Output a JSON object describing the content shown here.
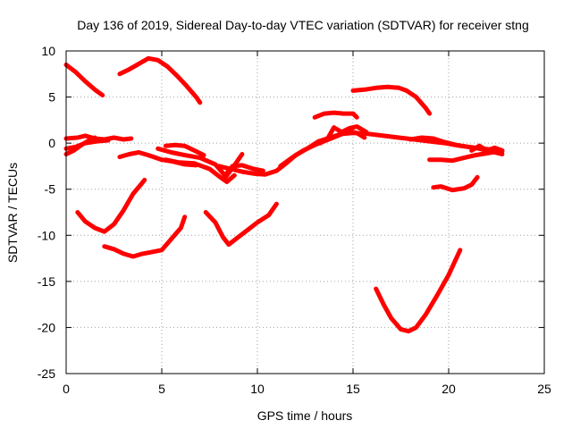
{
  "chart_data": {
    "type": "scatter",
    "title": "Day 136 of 2019, Sidereal Day-to-day VTEC variation (SDTVAR) for receiver stng",
    "xlabel": "GPS time / hours",
    "ylabel": "SDTVAR / TECUs",
    "xlim": [
      0,
      25
    ],
    "ylim": [
      -25,
      10
    ],
    "xticks": [
      0,
      5,
      10,
      15,
      20,
      25
    ],
    "yticks": [
      -25,
      -20,
      -15,
      -10,
      -5,
      0,
      5,
      10
    ],
    "grid": true,
    "color": "#ff0000",
    "series": [
      {
        "name": "arc-1",
        "points": [
          [
            0.0,
            8.5
          ],
          [
            0.5,
            7.7
          ],
          [
            1.0,
            6.7
          ],
          [
            1.5,
            5.8
          ],
          [
            1.9,
            5.2
          ]
        ]
      },
      {
        "name": "arc-2",
        "points": [
          [
            2.8,
            7.5
          ],
          [
            3.3,
            8.0
          ],
          [
            3.8,
            8.6
          ],
          [
            4.3,
            9.2
          ],
          [
            4.8,
            9.0
          ],
          [
            5.3,
            8.3
          ],
          [
            5.8,
            7.3
          ],
          [
            6.3,
            6.2
          ],
          [
            6.8,
            5.0
          ],
          [
            7.0,
            4.4
          ]
        ]
      },
      {
        "name": "arc-3",
        "points": [
          [
            0.0,
            0.5
          ],
          [
            0.6,
            0.6
          ],
          [
            1.0,
            0.8
          ],
          [
            1.5,
            0.5
          ],
          [
            2.0,
            0.4
          ],
          [
            2.5,
            0.6
          ],
          [
            3.0,
            0.4
          ],
          [
            3.4,
            0.5
          ]
        ]
      },
      {
        "name": "arc-4",
        "points": [
          [
            0.0,
            -1.2
          ],
          [
            0.4,
            -0.8
          ],
          [
            0.8,
            -0.2
          ],
          [
            1.2,
            0.3
          ],
          [
            1.5,
            0.6
          ]
        ]
      },
      {
        "name": "arc-5",
        "points": [
          [
            0.0,
            -0.6
          ],
          [
            0.5,
            -0.4
          ],
          [
            1.0,
            0.0
          ],
          [
            1.6,
            0.2
          ],
          [
            2.2,
            0.3
          ]
        ]
      },
      {
        "name": "arc-6",
        "points": [
          [
            2.8,
            -1.5
          ],
          [
            3.3,
            -1.2
          ],
          [
            3.8,
            -1.0
          ],
          [
            4.3,
            -1.3
          ],
          [
            5.0,
            -1.8
          ],
          [
            5.6,
            -2.0
          ],
          [
            6.2,
            -2.3
          ],
          [
            6.8,
            -2.4
          ]
        ]
      },
      {
        "name": "arc-7",
        "points": [
          [
            4.8,
            -0.6
          ],
          [
            5.5,
            -1.0
          ],
          [
            6.2,
            -1.3
          ],
          [
            7.0,
            -1.6
          ],
          [
            7.8,
            -2.3
          ],
          [
            8.3,
            -3.5
          ],
          [
            8.7,
            -2.5
          ],
          [
            9.2,
            -2.4
          ],
          [
            9.8,
            -2.8
          ],
          [
            10.3,
            -3.0
          ]
        ]
      },
      {
        "name": "arc-8",
        "points": [
          [
            5.2,
            -1.8
          ],
          [
            5.9,
            -2.1
          ],
          [
            6.7,
            -2.2
          ],
          [
            7.5,
            -2.8
          ],
          [
            8.0,
            -3.6
          ],
          [
            8.4,
            -4.2
          ],
          [
            8.8,
            -3.5
          ]
        ]
      },
      {
        "name": "arc-9",
        "points": [
          [
            5.2,
            -0.3
          ],
          [
            5.7,
            -0.2
          ],
          [
            6.2,
            -0.3
          ],
          [
            6.7,
            -0.8
          ],
          [
            7.2,
            -1.3
          ]
        ]
      },
      {
        "name": "arc-10",
        "points": [
          [
            8.0,
            -2.5
          ],
          [
            8.6,
            -2.8
          ],
          [
            9.2,
            -3.1
          ],
          [
            9.8,
            -3.3
          ],
          [
            10.4,
            -3.4
          ],
          [
            11.0,
            -3.0
          ],
          [
            11.5,
            -2.2
          ],
          [
            12.0,
            -1.3
          ],
          [
            12.6,
            -0.6
          ],
          [
            13.2,
            0.2
          ],
          [
            13.8,
            0.6
          ],
          [
            14.4,
            1.0
          ],
          [
            15.0,
            1.1
          ],
          [
            15.8,
            1.0
          ],
          [
            16.6,
            0.8
          ],
          [
            17.4,
            0.6
          ],
          [
            18.2,
            0.4
          ],
          [
            19.0,
            0.2
          ],
          [
            19.8,
            0.0
          ],
          [
            20.6,
            -0.3
          ],
          [
            21.4,
            -0.5
          ],
          [
            22.2,
            -0.7
          ],
          [
            22.8,
            -0.9
          ]
        ]
      },
      {
        "name": "arc-11",
        "points": [
          [
            8.3,
            -3.8
          ],
          [
            8.8,
            -2.4
          ],
          [
            9.2,
            -1.2
          ]
        ]
      },
      {
        "name": "arc-12",
        "points": [
          [
            11.2,
            -2.5
          ],
          [
            11.8,
            -1.6
          ],
          [
            12.4,
            -0.8
          ],
          [
            13.0,
            -0.2
          ],
          [
            13.6,
            0.3
          ],
          [
            14.2,
            0.8
          ],
          [
            14.8,
            1.3
          ],
          [
            15.2,
            1.1
          ],
          [
            15.6,
            0.6
          ]
        ]
      },
      {
        "name": "arc-13",
        "points": [
          [
            13.3,
            0.0
          ],
          [
            13.7,
            0.6
          ],
          [
            14.0,
            1.7
          ],
          [
            14.4,
            1.2
          ],
          [
            14.8,
            1.6
          ],
          [
            15.2,
            1.8
          ],
          [
            15.7,
            1.2
          ]
        ]
      },
      {
        "name": "arc-14",
        "points": [
          [
            13.0,
            2.8
          ],
          [
            13.5,
            3.2
          ],
          [
            14.0,
            3.3
          ],
          [
            14.5,
            3.2
          ],
          [
            15.0,
            3.2
          ],
          [
            15.2,
            2.8
          ]
        ]
      },
      {
        "name": "arc-15",
        "points": [
          [
            15.0,
            5.7
          ],
          [
            15.6,
            5.8
          ],
          [
            16.2,
            6.0
          ],
          [
            16.8,
            6.1
          ],
          [
            17.4,
            6.0
          ],
          [
            17.8,
            5.7
          ],
          [
            18.3,
            5.0
          ],
          [
            18.8,
            3.8
          ],
          [
            19.0,
            3.2
          ]
        ]
      },
      {
        "name": "arc-16",
        "points": [
          [
            18.0,
            0.4
          ],
          [
            18.6,
            0.6
          ],
          [
            19.2,
            0.5
          ],
          [
            19.8,
            0.1
          ],
          [
            20.4,
            -0.2
          ],
          [
            21.0,
            -0.4
          ],
          [
            21.6,
            -0.6
          ],
          [
            22.0,
            -0.8
          ],
          [
            22.4,
            -0.5
          ],
          [
            22.8,
            -0.8
          ]
        ]
      },
      {
        "name": "arc-17",
        "points": [
          [
            19.0,
            -1.8
          ],
          [
            19.6,
            -1.8
          ],
          [
            20.2,
            -1.9
          ],
          [
            20.8,
            -1.6
          ],
          [
            21.4,
            -1.3
          ],
          [
            22.0,
            -1.1
          ],
          [
            22.6,
            -0.9
          ]
        ]
      },
      {
        "name": "arc-18",
        "points": [
          [
            21.2,
            -0.8
          ],
          [
            21.6,
            -0.3
          ],
          [
            22.0,
            -0.8
          ],
          [
            22.4,
            -1.0
          ],
          [
            22.8,
            -1.2
          ]
        ]
      },
      {
        "name": "arc-19",
        "points": [
          [
            19.2,
            -4.8
          ],
          [
            19.6,
            -4.7
          ],
          [
            20.2,
            -5.1
          ],
          [
            20.8,
            -4.9
          ],
          [
            21.2,
            -4.5
          ],
          [
            21.5,
            -3.7
          ]
        ]
      },
      {
        "name": "arc-20",
        "points": [
          [
            0.6,
            -7.5
          ],
          [
            1.0,
            -8.5
          ],
          [
            1.5,
            -9.2
          ],
          [
            2.0,
            -9.6
          ],
          [
            2.5,
            -8.8
          ],
          [
            3.0,
            -7.3
          ],
          [
            3.5,
            -5.5
          ],
          [
            3.9,
            -4.5
          ],
          [
            4.1,
            -4.0
          ]
        ]
      },
      {
        "name": "arc-21",
        "points": [
          [
            2.0,
            -11.2
          ],
          [
            2.5,
            -11.5
          ],
          [
            3.0,
            -12.0
          ],
          [
            3.5,
            -12.3
          ],
          [
            4.0,
            -12.0
          ],
          [
            4.5,
            -11.8
          ],
          [
            5.0,
            -11.6
          ],
          [
            5.5,
            -10.4
          ],
          [
            6.0,
            -9.2
          ],
          [
            6.2,
            -8.0
          ]
        ]
      },
      {
        "name": "arc-22",
        "points": [
          [
            7.3,
            -7.5
          ],
          [
            7.8,
            -8.6
          ],
          [
            8.2,
            -10.2
          ],
          [
            8.5,
            -11.0
          ],
          [
            9.0,
            -10.2
          ],
          [
            9.5,
            -9.4
          ],
          [
            10.0,
            -8.6
          ],
          [
            10.6,
            -7.8
          ],
          [
            11.0,
            -6.6
          ]
        ]
      },
      {
        "name": "arc-23",
        "points": [
          [
            16.2,
            -15.8
          ],
          [
            16.6,
            -17.5
          ],
          [
            17.0,
            -19.0
          ],
          [
            17.5,
            -20.2
          ],
          [
            17.9,
            -20.4
          ],
          [
            18.3,
            -20.0
          ],
          [
            18.8,
            -18.6
          ],
          [
            19.4,
            -16.5
          ],
          [
            20.0,
            -14.3
          ],
          [
            20.6,
            -11.6
          ]
        ]
      }
    ]
  }
}
